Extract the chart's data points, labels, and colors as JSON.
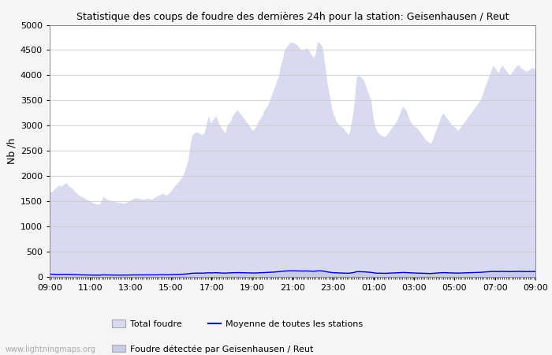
{
  "title": "Statistique des coups de foudre des dernières 24h pour la station: Geisenhausen / Reut",
  "ylabel": "Nb /h",
  "ylim": [
    0,
    5000
  ],
  "yticks": [
    0,
    500,
    1000,
    1500,
    2000,
    2500,
    3000,
    3500,
    4000,
    4500,
    5000
  ],
  "x_labels": [
    "09:00",
    "11:00",
    "13:00",
    "15:00",
    "17:00",
    "19:00",
    "21:00",
    "23:00",
    "01:00",
    "03:00",
    "05:00",
    "07:00",
    "09:00"
  ],
  "background_color": "#f5f5f5",
  "plot_bg_color": "#ffffff",
  "grid_color": "#cccccc",
  "fill_total_color": "#d8daf0",
  "fill_station_color": "#c8cce8",
  "line_mean_color": "#0000bb",
  "watermark": "www.lightningmaps.org",
  "legend_labels": [
    "Total foudre",
    "Moyenne de toutes les stations",
    "Foudre détectée par Geisenhausen / Reut"
  ],
  "total_foudre": [
    1700,
    1680,
    1720,
    1760,
    1790,
    1820,
    1800,
    1820,
    1850,
    1870,
    1820,
    1780,
    1760,
    1720,
    1680,
    1640,
    1620,
    1600,
    1580,
    1560,
    1540,
    1520,
    1500,
    1480,
    1460,
    1450,
    1440,
    1450,
    1520,
    1600,
    1560,
    1540,
    1530,
    1520,
    1510,
    1500,
    1490,
    1480,
    1480,
    1470,
    1460,
    1470,
    1490,
    1510,
    1530,
    1550,
    1560,
    1570,
    1560,
    1550,
    1540,
    1540,
    1550,
    1560,
    1550,
    1540,
    1560,
    1580,
    1600,
    1620,
    1640,
    1660,
    1640,
    1620,
    1640,
    1680,
    1720,
    1780,
    1820,
    1860,
    1900,
    1950,
    2000,
    2100,
    2200,
    2350,
    2600,
    2800,
    2850,
    2870,
    2880,
    2850,
    2830,
    2820,
    2900,
    3050,
    3200,
    3050,
    3100,
    3150,
    3200,
    3100,
    3000,
    2950,
    2900,
    2850,
    3000,
    3050,
    3100,
    3200,
    3250,
    3300,
    3300,
    3250,
    3200,
    3150,
    3100,
    3050,
    3000,
    2950,
    2900,
    2950,
    3000,
    3100,
    3150,
    3200,
    3300,
    3350,
    3400,
    3500,
    3600,
    3700,
    3800,
    3900,
    4000,
    4200,
    4300,
    4500,
    4550,
    4600,
    4650,
    4660,
    4650,
    4620,
    4600,
    4550,
    4500,
    4500,
    4520,
    4550,
    4500,
    4450,
    4400,
    4350,
    4450,
    4670,
    4650,
    4600,
    4500,
    4200,
    3900,
    3700,
    3500,
    3300,
    3200,
    3100,
    3050,
    3000,
    2980,
    2950,
    2900,
    2850,
    2820,
    3000,
    3200,
    3500,
    3950,
    4000,
    3980,
    3950,
    3900,
    3800,
    3700,
    3600,
    3500,
    3200,
    3000,
    2900,
    2850,
    2820,
    2800,
    2780,
    2800,
    2850,
    2900,
    2950,
    3000,
    3050,
    3100,
    3200,
    3300,
    3380,
    3350,
    3300,
    3200,
    3100,
    3050,
    3000,
    2980,
    2950,
    2900,
    2850,
    2800,
    2750,
    2700,
    2680,
    2650,
    2700,
    2800,
    2900,
    3000,
    3100,
    3200,
    3250,
    3200,
    3150,
    3100,
    3050,
    3000,
    2980,
    2950,
    2900,
    2950,
    3000,
    3050,
    3100,
    3150,
    3200,
    3250,
    3300,
    3350,
    3400,
    3450,
    3500,
    3600,
    3700,
    3800,
    3900,
    4000,
    4100,
    4200,
    4150,
    4100,
    4050,
    4150,
    4200,
    4150,
    4100,
    4050,
    4000,
    4050,
    4100,
    4150,
    4200,
    4200,
    4150,
    4120,
    4100,
    4080,
    4100,
    4120,
    4150,
    4150,
    4100
  ],
  "station_foudre": [
    70,
    68,
    65,
    62,
    60,
    62,
    60,
    62,
    64,
    66,
    64,
    62,
    60,
    58,
    55,
    52,
    50,
    48,
    47,
    46,
    45,
    44,
    43,
    42,
    41,
    40,
    40,
    41,
    44,
    48,
    46,
    45,
    45,
    44,
    43,
    42,
    42,
    41,
    41,
    40,
    40,
    41,
    42,
    43,
    44,
    45,
    46,
    46,
    46,
    45,
    45,
    45,
    45,
    46,
    46,
    45,
    46,
    47,
    48,
    49,
    50,
    51,
    50,
    49,
    50,
    51,
    52,
    54,
    55,
    57,
    58,
    60,
    62,
    65,
    68,
    72,
    78,
    84,
    86,
    87,
    88,
    87,
    86,
    86,
    88,
    92,
    96,
    92,
    94,
    95,
    96,
    94,
    91,
    90,
    88,
    86,
    91,
    92,
    94,
    96,
    98,
    99,
    99,
    98,
    97,
    95,
    94,
    92,
    91,
    90,
    88,
    90,
    91,
    94,
    95,
    97,
    99,
    101,
    102,
    105,
    108,
    111,
    114,
    117,
    120,
    126,
    129,
    135,
    137,
    138,
    140,
    140,
    140,
    139,
    138,
    137,
    135,
    135,
    136,
    137,
    135,
    134,
    132,
    131,
    134,
    140,
    140,
    138,
    135,
    129,
    117,
    111,
    105,
    99,
    96,
    93,
    92,
    91,
    90,
    89,
    88,
    86,
    85,
    91,
    96,
    105,
    119,
    120,
    119,
    119,
    117,
    114,
    111,
    108,
    105,
    96,
    91,
    87,
    86,
    85,
    84,
    84,
    84,
    86,
    87,
    89,
    91,
    92,
    94,
    96,
    99,
    101,
    101,
    99,
    96,
    93,
    92,
    91,
    90,
    89,
    88,
    86,
    84,
    83,
    81,
    80,
    78,
    81,
    84,
    87,
    91,
    93,
    96,
    98,
    98,
    95,
    93,
    92,
    92,
    90,
    89,
    87,
    89,
    91,
    92,
    93,
    95,
    96,
    98,
    100,
    101,
    102,
    104,
    105,
    108,
    111,
    114,
    117,
    120,
    123,
    126,
    125,
    123,
    122,
    125,
    126,
    125,
    123,
    122,
    120,
    122,
    123,
    125,
    126,
    126,
    125,
    124,
    123,
    122,
    123,
    124,
    125,
    125,
    123
  ],
  "mean_all": [
    55,
    54,
    52,
    51,
    49,
    50,
    49,
    50,
    51,
    52,
    51,
    50,
    48,
    47,
    45,
    43,
    42,
    41,
    40,
    40,
    39,
    38,
    38,
    37,
    36,
    36,
    36,
    36,
    38,
    41,
    40,
    39,
    39,
    38,
    38,
    37,
    37,
    36,
    36,
    36,
    36,
    36,
    37,
    38,
    38,
    39,
    40,
    40,
    40,
    39,
    39,
    39,
    40,
    40,
    40,
    39,
    40,
    41,
    41,
    42,
    43,
    44,
    43,
    42,
    43,
    44,
    45,
    47,
    48,
    49,
    50,
    52,
    54,
    56,
    58,
    62,
    67,
    72,
    74,
    75,
    75,
    74,
    74,
    74,
    76,
    79,
    83,
    79,
    81,
    82,
    83,
    81,
    78,
    77,
    76,
    74,
    78,
    79,
    81,
    83,
    84,
    85,
    85,
    84,
    83,
    82,
    81,
    79,
    78,
    77,
    76,
    77,
    78,
    81,
    82,
    83,
    85,
    87,
    88,
    90,
    93,
    96,
    98,
    101,
    104,
    109,
    111,
    116,
    118,
    119,
    120,
    120,
    120,
    120,
    119,
    118,
    116,
    116,
    117,
    118,
    116,
    115,
    114,
    113,
    115,
    120,
    120,
    119,
    116,
    111,
    101,
    96,
    90,
    85,
    83,
    80,
    79,
    78,
    77,
    77,
    76,
    74,
    73,
    78,
    83,
    90,
    102,
    104,
    103,
    102,
    101,
    98,
    96,
    93,
    90,
    83,
    78,
    75,
    74,
    73,
    72,
    72,
    72,
    74,
    75,
    77,
    78,
    79,
    81,
    83,
    85,
    87,
    87,
    85,
    83,
    80,
    79,
    78,
    77,
    77,
    76,
    74,
    72,
    71,
    70,
    69,
    67,
    70,
    72,
    75,
    78,
    80,
    83,
    84,
    84,
    82,
    80,
    79,
    79,
    77,
    77,
    75,
    77,
    78,
    79,
    80,
    82,
    83,
    84,
    86,
    87,
    88,
    89,
    90,
    93,
    96,
    98,
    101,
    104,
    106,
    109,
    108,
    106,
    105,
    108,
    109,
    108,
    106,
    105,
    104,
    105,
    106,
    108,
    109,
    109,
    108,
    107,
    106,
    105,
    106,
    107,
    108,
    108,
    106
  ]
}
